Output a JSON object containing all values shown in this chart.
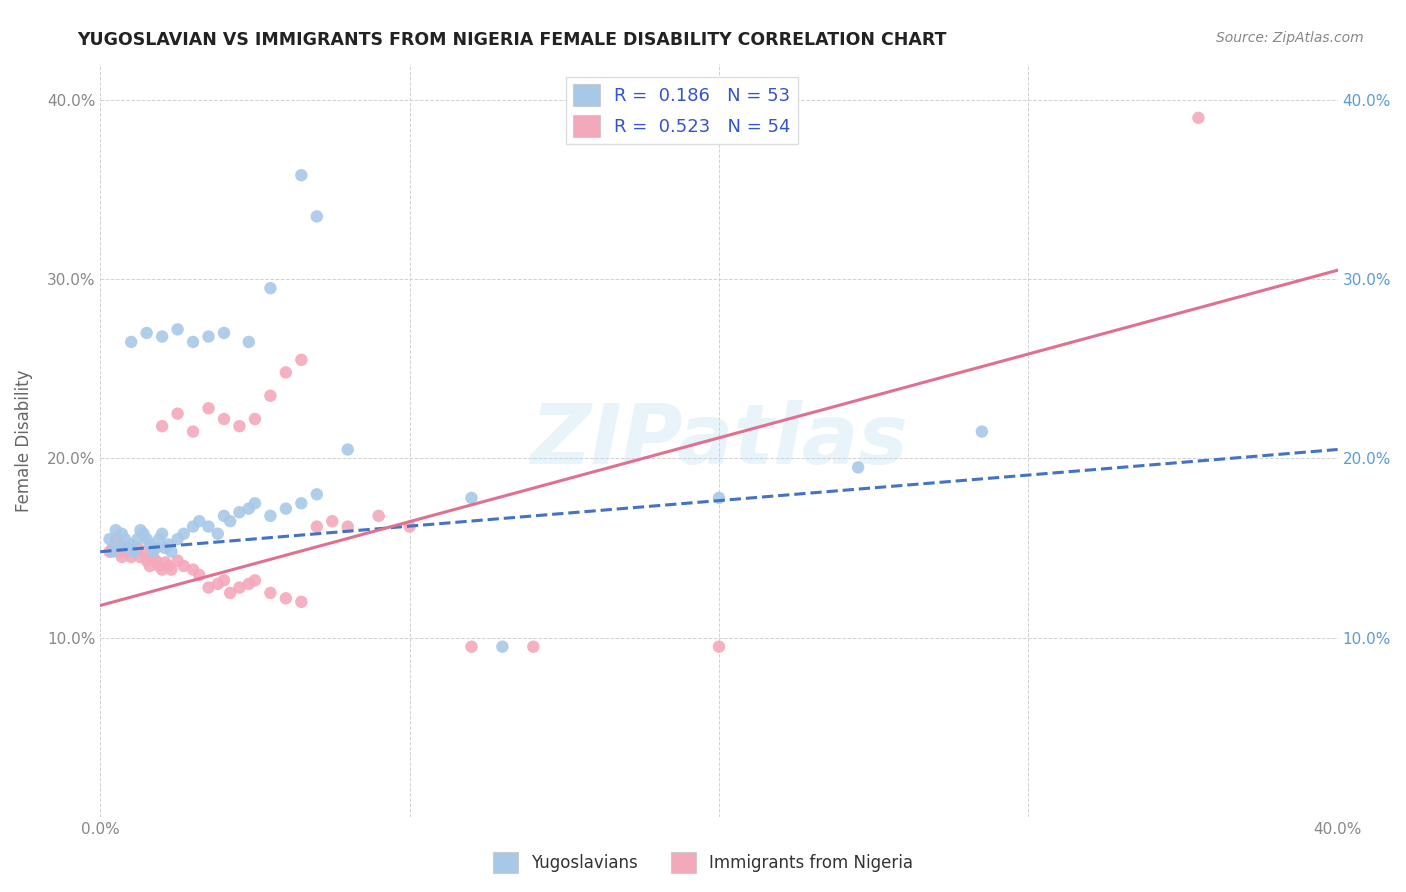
{
  "title": "YUGOSLAVIAN VS IMMIGRANTS FROM NIGERIA FEMALE DISABILITY CORRELATION CHART",
  "source": "Source: ZipAtlas.com",
  "ylabel": "Female Disability",
  "xlim": [
    0.0,
    0.4
  ],
  "ylim": [
    0.0,
    0.42
  ],
  "x_ticks": [
    0.0,
    0.1,
    0.2,
    0.3,
    0.4
  ],
  "x_tick_labels_left": [
    "0.0%",
    "",
    "",
    "",
    "40.0%"
  ],
  "y_ticks": [
    0.0,
    0.1,
    0.2,
    0.3,
    0.4
  ],
  "y_tick_labels_left": [
    "",
    "10.0%",
    "20.0%",
    "30.0%",
    "40.0%"
  ],
  "y_tick_labels_right": [
    "",
    "10.0%",
    "20.0%",
    "30.0%",
    "40.0%"
  ],
  "background_color": "#ffffff",
  "grid_color": "#cccccc",
  "yug_color": "#a8c8e8",
  "nig_color": "#f4a8bc",
  "yug_line_color": "#4472c4",
  "nig_line_color": "#e07090",
  "right_tick_color": "#5b9bd5",
  "R_yug": 0.186,
  "N_yug": 53,
  "R_nig": 0.523,
  "N_nig": 54,
  "legend_label_yug": "Yugoslavians",
  "legend_label_nig": "Immigrants from Nigeria",
  "watermark": "ZIPatlas",
  "yug_line_start_y": 0.148,
  "yug_line_end_y": 0.205,
  "nig_line_start_y": 0.118,
  "nig_line_end_y": 0.305,
  "yug_scatter_x": [
    0.003,
    0.004,
    0.005,
    0.006,
    0.007,
    0.008,
    0.009,
    0.01,
    0.011,
    0.012,
    0.013,
    0.014,
    0.015,
    0.016,
    0.017,
    0.018,
    0.019,
    0.02,
    0.021,
    0.022,
    0.023,
    0.025,
    0.027,
    0.03,
    0.032,
    0.035,
    0.038,
    0.04,
    0.042,
    0.045,
    0.048,
    0.05,
    0.055,
    0.06,
    0.065,
    0.07,
    0.01,
    0.015,
    0.02,
    0.025,
    0.03,
    0.035,
    0.04,
    0.048,
    0.055,
    0.065,
    0.07,
    0.08,
    0.12,
    0.13,
    0.2,
    0.245,
    0.285
  ],
  "yug_scatter_y": [
    0.155,
    0.148,
    0.16,
    0.152,
    0.158,
    0.155,
    0.15,
    0.152,
    0.148,
    0.155,
    0.16,
    0.158,
    0.155,
    0.152,
    0.148,
    0.15,
    0.155,
    0.158,
    0.15,
    0.152,
    0.148,
    0.155,
    0.158,
    0.162,
    0.165,
    0.162,
    0.158,
    0.168,
    0.165,
    0.17,
    0.172,
    0.175,
    0.168,
    0.172,
    0.175,
    0.18,
    0.265,
    0.27,
    0.268,
    0.272,
    0.265,
    0.268,
    0.27,
    0.265,
    0.295,
    0.358,
    0.335,
    0.205,
    0.178,
    0.095,
    0.178,
    0.195,
    0.215
  ],
  "nig_scatter_x": [
    0.003,
    0.004,
    0.005,
    0.006,
    0.007,
    0.008,
    0.009,
    0.01,
    0.011,
    0.012,
    0.013,
    0.014,
    0.015,
    0.016,
    0.017,
    0.018,
    0.019,
    0.02,
    0.021,
    0.022,
    0.023,
    0.025,
    0.027,
    0.03,
    0.032,
    0.035,
    0.038,
    0.04,
    0.042,
    0.045,
    0.048,
    0.05,
    0.055,
    0.06,
    0.065,
    0.02,
    0.025,
    0.03,
    0.035,
    0.04,
    0.045,
    0.05,
    0.055,
    0.06,
    0.065,
    0.07,
    0.075,
    0.08,
    0.09,
    0.1,
    0.12,
    0.14,
    0.2,
    0.355
  ],
  "nig_scatter_y": [
    0.148,
    0.15,
    0.155,
    0.148,
    0.145,
    0.15,
    0.148,
    0.145,
    0.148,
    0.15,
    0.145,
    0.148,
    0.143,
    0.14,
    0.145,
    0.143,
    0.14,
    0.138,
    0.142,
    0.14,
    0.138,
    0.143,
    0.14,
    0.138,
    0.135,
    0.128,
    0.13,
    0.132,
    0.125,
    0.128,
    0.13,
    0.132,
    0.125,
    0.122,
    0.12,
    0.218,
    0.225,
    0.215,
    0.228,
    0.222,
    0.218,
    0.222,
    0.235,
    0.248,
    0.255,
    0.162,
    0.165,
    0.162,
    0.168,
    0.162,
    0.095,
    0.095,
    0.095,
    0.39
  ]
}
